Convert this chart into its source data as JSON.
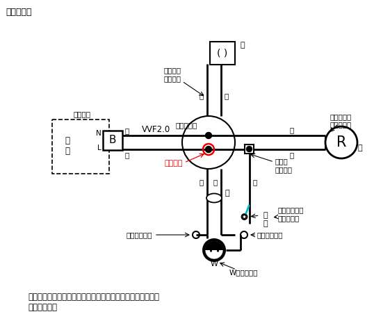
{
  "bg_color": "#ffffff",
  "red_color": "#ee0000",
  "cyan_color": "#00bbcc",
  "title": "【複線図】",
  "vvf": "VVF2.0",
  "chusleeve": "中スリーブ",
  "sesshoku": "接地側の\n表示に白",
  "ukegane": "受金ねじ部\nの端子に白",
  "sasikomi": "差込形\nコネクタ",
  "watari_kuro": "わたり線は黒",
  "watari_shiro": "わたり線は白",
  "w_hyoji": "Wの表示に白",
  "iro_kawazu": "電線の色別は\n問わない。",
  "shoko": "施工省略",
  "dengen": "電\n源",
  "ko_atsuchaku": "小で圧着",
  "note": "（注）上記は例であり、これ以外にも正解となる結線方法が\n　あります。",
  "N": "N",
  "L": "L",
  "B": "B",
  "W": "W",
  "R": "R",
  "i": "イ",
  "shiro": "白",
  "kuro": "黒",
  "aka": "赤"
}
